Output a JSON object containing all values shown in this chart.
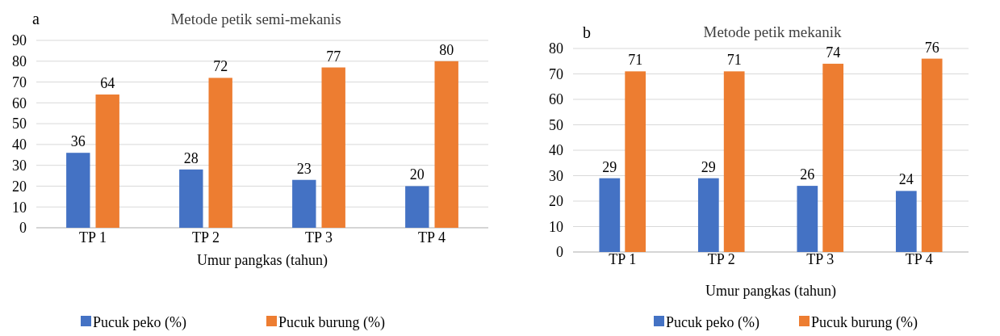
{
  "chart_data": [
    {
      "type": "bar",
      "title": "Metode petik semi-mekanis",
      "xlabel": "Umur pangkas (tahun)",
      "annotations": [
        "a"
      ],
      "categories": [
        "TP 1",
        "TP 2",
        "TP 3",
        "TP 4"
      ],
      "series": [
        {
          "name": "Pucuk peko (%)",
          "color": "#4472c4",
          "values": [
            36,
            28,
            23,
            20
          ]
        },
        {
          "name": "Pucuk burung (%)",
          "color": "#ed7d31",
          "values": [
            64,
            72,
            77,
            80
          ]
        }
      ],
      "ylim": [
        0,
        90
      ],
      "yticks": [
        0,
        10,
        20,
        30,
        40,
        50,
        60,
        70,
        80,
        90
      ],
      "grid": "y",
      "legend": "bottom",
      "data_labels": true
    },
    {
      "type": "bar",
      "title": "Metode petik mekanik",
      "xlabel": "Umur pangkas (tahun)",
      "annotations": [
        "b"
      ],
      "categories": [
        "TP 1",
        "TP 2",
        "TP 3",
        "TP 4"
      ],
      "series": [
        {
          "name": "Pucuk peko (%)",
          "color": "#4472c4",
          "values": [
            29,
            29,
            26,
            24
          ]
        },
        {
          "name": "Pucuk burung (%)",
          "color": "#ed7d31",
          "values": [
            71,
            71,
            74,
            76
          ]
        }
      ],
      "ylim": [
        0,
        80
      ],
      "yticks": [
        0,
        10,
        20,
        30,
        40,
        50,
        60,
        70,
        80
      ],
      "grid": "y",
      "legend": "bottom",
      "data_labels": true
    }
  ]
}
